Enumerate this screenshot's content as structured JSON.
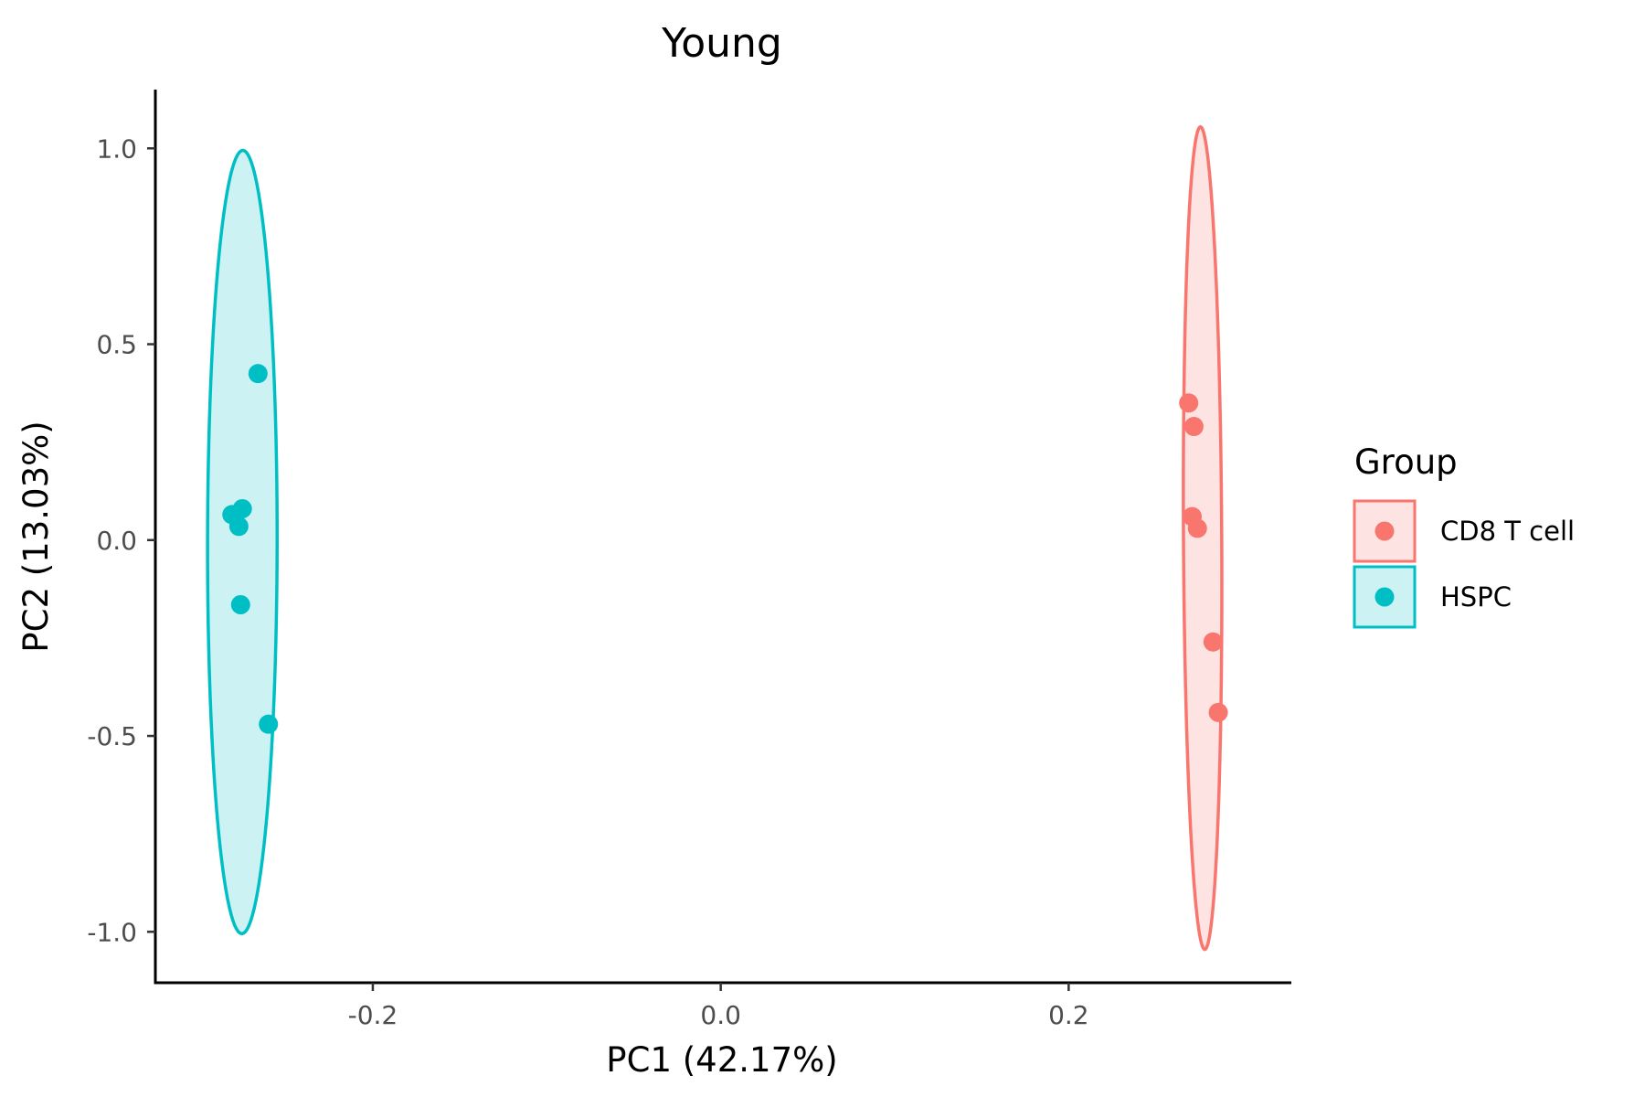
{
  "chart_data": {
    "type": "scatter",
    "title": "Young",
    "xlabel": "PC1 (42.17%)",
    "ylabel": "PC2 (13.03%)",
    "xlim": [
      -0.325,
      0.328
    ],
    "ylim": [
      -1.13,
      1.15
    ],
    "x_ticks": [
      -0.2,
      0.0,
      0.2
    ],
    "x_tick_labels": [
      "-0.2",
      "0.0",
      "0.2"
    ],
    "y_ticks": [
      1.0,
      0.5,
      0.0,
      -0.5,
      -1.0
    ],
    "y_tick_labels": [
      "1.0",
      "0.5",
      "0.0",
      "-0.5",
      "-1.0"
    ],
    "grid": false,
    "legend": {
      "title": "Group",
      "position": "right"
    },
    "series": [
      {
        "name": "CD8 T cell",
        "color": "#F8766D",
        "fill": "#FDE3E2",
        "points": [
          {
            "x": 0.269,
            "y": 0.35
          },
          {
            "x": 0.272,
            "y": 0.29
          },
          {
            "x": 0.271,
            "y": 0.06
          },
          {
            "x": 0.274,
            "y": 0.03
          },
          {
            "x": 0.283,
            "y": -0.26
          },
          {
            "x": 0.286,
            "y": -0.44
          }
        ],
        "ellipse": {
          "cx": 0.277,
          "cy": 0.005,
          "a": 1.05,
          "b": 0.011,
          "angle_deg": -3.4
        }
      },
      {
        "name": "HSPC",
        "color": "#00BFC4",
        "fill": "#CCF2F3",
        "points": [
          {
            "x": -0.266,
            "y": 0.425
          },
          {
            "x": -0.275,
            "y": 0.08
          },
          {
            "x": -0.281,
            "y": 0.065
          },
          {
            "x": -0.277,
            "y": 0.035
          },
          {
            "x": -0.276,
            "y": -0.165
          },
          {
            "x": -0.26,
            "y": -0.47
          }
        ],
        "ellipse": {
          "cx": -0.275,
          "cy": -0.005,
          "a": 1.0,
          "b": 0.02,
          "angle_deg": 0.8
        }
      }
    ]
  }
}
